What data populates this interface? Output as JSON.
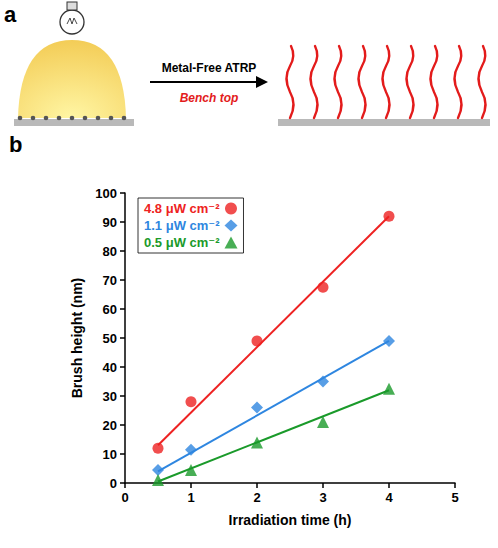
{
  "panel_a": {
    "label": "a",
    "arrow_label": "Metal-Free ATRP",
    "condition": "Bench top"
  },
  "chart_data": {
    "type": "scatter",
    "panel_label": "b",
    "x_label": "Irradiation time (h)",
    "y_label": "Brush height (nm)",
    "xlim": [
      0,
      5
    ],
    "xticks": [
      0,
      1,
      2,
      3,
      4,
      5
    ],
    "ylim": [
      0,
      100
    ],
    "yticks": [
      0,
      10,
      20,
      30,
      40,
      50,
      60,
      70,
      80,
      90,
      100
    ],
    "grid": false,
    "legend": "upper left",
    "series": [
      {
        "name": "4.8 μW cm⁻²",
        "color": "#ee2222",
        "marker": "circle",
        "line_style": "solid",
        "x": [
          0.5,
          1,
          2,
          3,
          4
        ],
        "values": [
          12,
          28,
          49,
          67.5,
          92
        ],
        "fit_x": [
          0.5,
          4
        ],
        "fit_values": [
          13,
          92
        ]
      },
      {
        "name": "1.1 μW cm⁻²",
        "color": "#2e86e0",
        "marker": "diamond",
        "line_style": "solid",
        "x": [
          0.5,
          1,
          2,
          3,
          4
        ],
        "values": [
          4.5,
          11.5,
          26,
          35,
          49
        ],
        "fit_x": [
          0.5,
          4
        ],
        "fit_values": [
          4,
          49
        ]
      },
      {
        "name": "0.5 μW cm⁻²",
        "color": "#1a9a2a",
        "marker": "triangle",
        "line_style": "solid",
        "x": [
          0.5,
          1,
          2,
          3,
          4
        ],
        "values": [
          1,
          4.5,
          14,
          21,
          32.5
        ],
        "fit_x": [
          0.5,
          4
        ],
        "fit_values": [
          0.5,
          32
        ]
      }
    ]
  }
}
